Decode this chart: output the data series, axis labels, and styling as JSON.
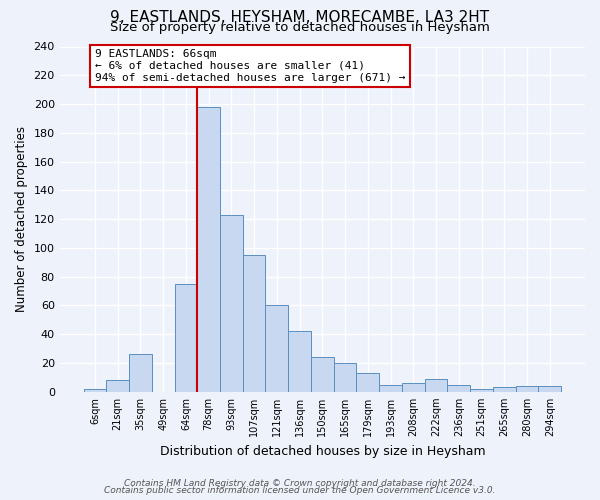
{
  "title": "9, EASTLANDS, HEYSHAM, MORECAMBE, LA3 2HT",
  "subtitle": "Size of property relative to detached houses in Heysham",
  "xlabel": "Distribution of detached houses by size in Heysham",
  "ylabel": "Number of detached properties",
  "footer_line1": "Contains HM Land Registry data © Crown copyright and database right 2024.",
  "footer_line2": "Contains public sector information licensed under the Open Government Licence v3.0.",
  "bin_labels": [
    "6sqm",
    "21sqm",
    "35sqm",
    "49sqm",
    "64sqm",
    "78sqm",
    "93sqm",
    "107sqm",
    "121sqm",
    "136sqm",
    "150sqm",
    "165sqm",
    "179sqm",
    "193sqm",
    "208sqm",
    "222sqm",
    "236sqm",
    "251sqm",
    "265sqm",
    "280sqm",
    "294sqm"
  ],
  "bin_values": [
    2,
    8,
    26,
    0,
    75,
    198,
    123,
    95,
    60,
    42,
    24,
    20,
    13,
    5,
    6,
    9,
    5,
    2,
    3,
    4,
    4
  ],
  "bar_color": "#c8d8f0",
  "bar_edge_color": "#5a8fc0",
  "vline_x_index": 4,
  "vline_color": "#cc0000",
  "annotation_title": "9 EASTLANDS: 66sqm",
  "annotation_line1": "← 6% of detached houses are smaller (41)",
  "annotation_line2": "94% of semi-detached houses are larger (671) →",
  "annotation_box_color": "#ffffff",
  "annotation_box_edge_color": "#cc0000",
  "ylim": [
    0,
    240
  ],
  "yticks": [
    0,
    20,
    40,
    60,
    80,
    100,
    120,
    140,
    160,
    180,
    200,
    220,
    240
  ],
  "background_color": "#eef2fa",
  "grid_color": "#ffffff",
  "title_fontsize": 11,
  "subtitle_fontsize": 9.5
}
